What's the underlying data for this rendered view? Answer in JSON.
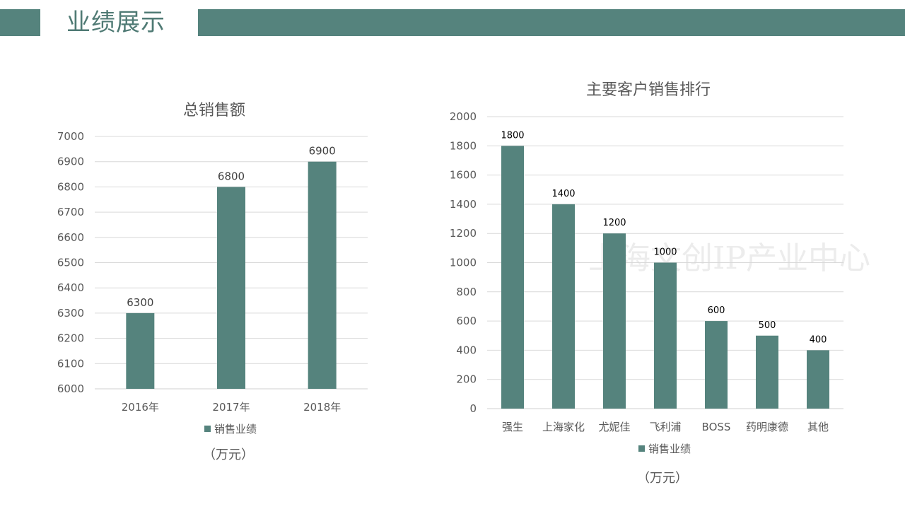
{
  "header": {
    "title": "业绩展示"
  },
  "watermark": "上海文创IP产业中心",
  "colors": {
    "bar": "#55837d",
    "band": "#55837d",
    "text": "#595959"
  },
  "chart_data": [
    {
      "type": "bar",
      "title": "总销售额",
      "categories": [
        "2016年",
        "2017年",
        "2018年"
      ],
      "series": [
        {
          "name": "销售业绩",
          "values": [
            6300,
            6800,
            6900
          ]
        }
      ],
      "ylim": [
        6000,
        7000
      ],
      "yticks": [
        6000,
        6100,
        6200,
        6300,
        6400,
        6500,
        6600,
        6700,
        6800,
        6900,
        7000
      ],
      "grid": true,
      "legend": "bottom",
      "unit": "（万元）"
    },
    {
      "type": "bar",
      "title": "主要客户销售排行",
      "categories": [
        "强生",
        "上海家化",
        "尤妮佳",
        "飞利浦",
        "BOSS",
        "药明康德",
        "其他"
      ],
      "series": [
        {
          "name": "销售业绩",
          "values": [
            1800,
            1400,
            1200,
            1000,
            600,
            500,
            400
          ]
        }
      ],
      "ylim": [
        0,
        2000
      ],
      "yticks": [
        0,
        200,
        400,
        600,
        800,
        1000,
        1200,
        1400,
        1600,
        1800,
        2000
      ],
      "grid": true,
      "legend": "bottom",
      "unit": "（万元）"
    }
  ]
}
